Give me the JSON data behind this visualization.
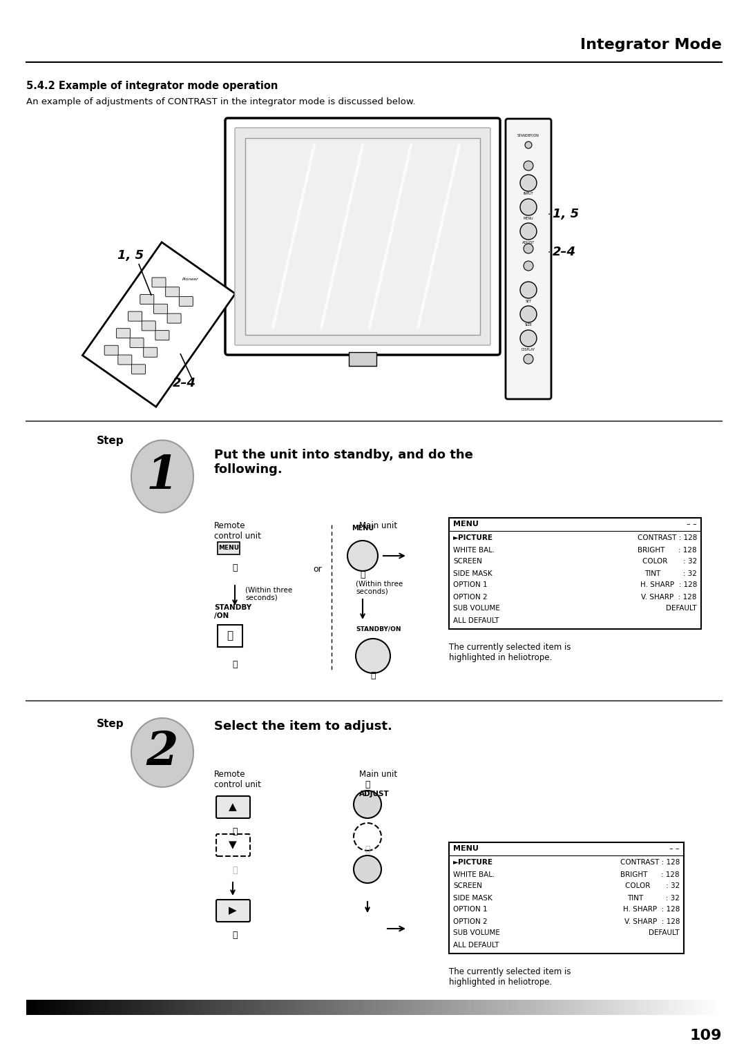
{
  "title": "Integrator Mode",
  "section_title": "5.4.2 Example of integrator mode operation",
  "section_desc": "An example of adjustments of CONTRAST in the integrator mode is discussed below.",
  "step1_title": "Put the unit into standby, and do the\nfollowing.",
  "step2_title": "Select the item to adjust.",
  "bg_color": "#ffffff",
  "text_color": "#000000",
  "currently_text1": "The currently selected item is\nhighlighted in heliotrope.",
  "currently_text2": "The currently selected item is\nhighlighted in heliotrope.",
  "page_number": "109",
  "label_15": "1, 5",
  "label_24": "2–4",
  "menu_left1": [
    "MENU",
    "►PICTURE",
    "WHITE BAL.",
    "SCREEN",
    "SIDE MASK",
    "OPTION 1",
    "OPTION 2",
    "SUB VOLUME",
    "ALL DEFAULT"
  ],
  "menu_right1": [
    "– –",
    "CONTRAST : 128",
    "BRIGHT      : 128",
    "COLOR       : 32",
    "TINT          : 32",
    "H. SHARP  : 128",
    "V. SHARP  : 128",
    "DEFAULT",
    ""
  ],
  "menu_left2": [
    "MENU",
    "►PICTURE",
    "WHITE BAL.",
    "SCREEN",
    "SIDE MASK",
    "OPTION 1",
    "OPTION 2",
    "SUB VOLUME",
    "ALL DEFAULT"
  ],
  "menu_right2": [
    "– –",
    "CONTRAST : 128",
    "BRIGHT      : 128",
    "COLOR       : 32",
    "TINT          : 32",
    "H. SHARP  : 128",
    "V. SHARP  : 128",
    "DEFAULT",
    ""
  ],
  "header_color": "#1a1a1a",
  "header_line_color": "#333333",
  "divider_color": "#555555",
  "step_circle_color": "#cccccc",
  "step_num1_color": "#000000",
  "step_num2_color": "#000000"
}
